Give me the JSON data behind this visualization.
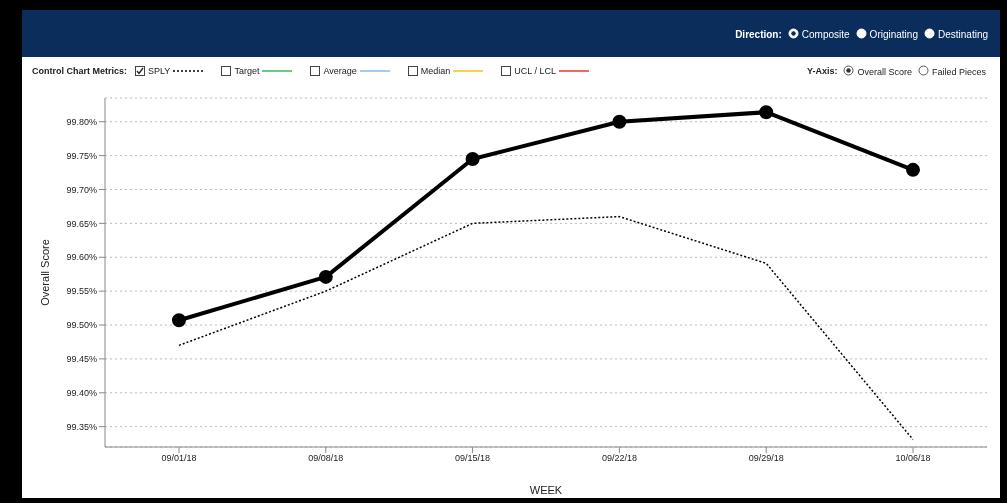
{
  "chart_data": {
    "type": "line",
    "xlabel": "WEEK",
    "ylabel": "Overall Score",
    "categories": [
      "09/01/18",
      "09/08/18",
      "09/15/18",
      "09/22/18",
      "09/29/18",
      "10/06/18"
    ],
    "series": [
      {
        "color": "#000000",
        "marker": "circle",
        "line_style": "solid",
        "values": [
          99.507,
          99.571,
          99.745,
          99.8,
          99.814,
          99.729
        ]
      },
      {
        "name": "SPLY",
        "color": "#000000",
        "marker": "none",
        "line_style": "dotted",
        "values": [
          99.47,
          99.55,
          99.65,
          99.66,
          99.591,
          99.331
        ]
      }
    ],
    "ylim": [
      99.32,
      99.835
    ],
    "yticks": [
      {
        "value": 99.35,
        "label": "99.35%"
      },
      {
        "value": 99.4,
        "label": "99.40%"
      },
      {
        "value": 99.45,
        "label": "99.45%"
      },
      {
        "value": 99.5,
        "label": "99.50%"
      },
      {
        "value": 99.55,
        "label": "99.55%"
      },
      {
        "value": 99.6,
        "label": "99.60%"
      },
      {
        "value": 99.65,
        "label": "99.65%"
      },
      {
        "value": 99.7,
        "label": "99.70%"
      },
      {
        "value": 99.75,
        "label": "99.75%"
      },
      {
        "value": 99.8,
        "label": "99.80%"
      }
    ],
    "grid": "y",
    "legend": "top left",
    "annotations": [
      "Direction:",
      "Composite",
      "Originating",
      "Destinating",
      "Control Chart Metrics:",
      "Target",
      "Average",
      "Median",
      "UCL / LCL",
      "Y-Axis:",
      "Overall Score",
      "Failed Pieces"
    ]
  }
}
